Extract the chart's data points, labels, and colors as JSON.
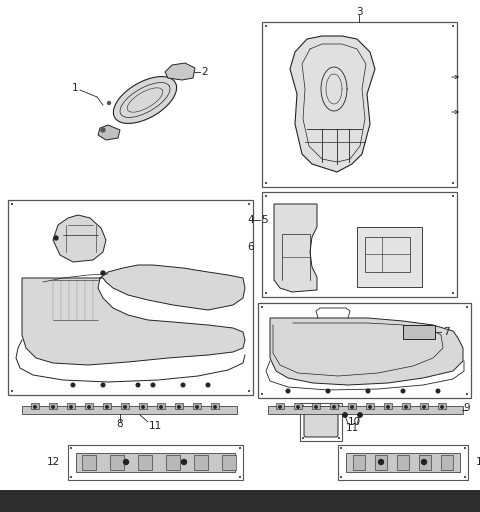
{
  "bg_color": "#ffffff",
  "line_color": "#444444",
  "dark_color": "#222222",
  "gray_fill": "#e8e8e8",
  "mid_gray": "#cccccc",
  "dark_gray": "#999999",
  "figsize": [
    4.8,
    5.12
  ],
  "dpi": 100,
  "bottom_bar_color": "#2d2d2d",
  "box_edge": "#555555"
}
